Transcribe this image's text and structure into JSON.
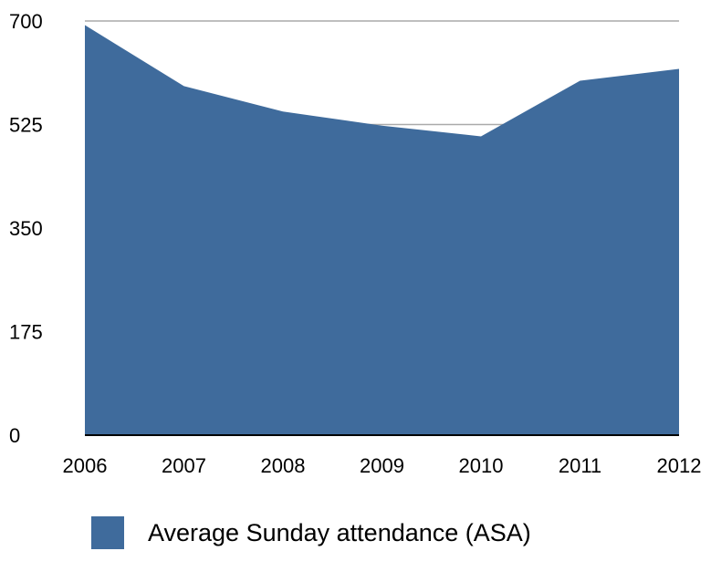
{
  "chart_data": {
    "type": "area",
    "x": [
      "2006",
      "2007",
      "2008",
      "2009",
      "2010",
      "2011",
      "2012"
    ],
    "series": [
      {
        "name": "Average Sunday attendance (ASA)",
        "values": [
          693,
          590,
          547,
          523,
          505,
          599,
          619
        ],
        "color": "#3f6b9c"
      }
    ],
    "y_ticks": [
      "0",
      "175",
      "350",
      "525",
      "700"
    ],
    "ylim": [
      0,
      700
    ],
    "grid": true,
    "legend_position": "bottom",
    "grid_color": "#aaaaaa",
    "axis_color": "#000000"
  }
}
